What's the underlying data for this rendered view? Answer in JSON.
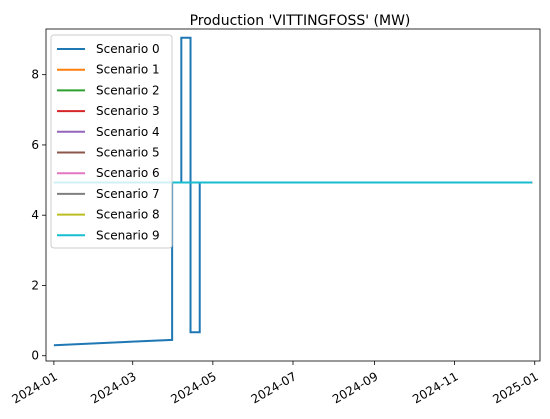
{
  "chart_data": {
    "type": "line",
    "title": "Production 'VITTINGFOSS' (MW)",
    "xlabel": "",
    "ylabel": "",
    "x_range": [
      "2023-12-26",
      "2025-01-05"
    ],
    "ylim": [
      -0.15,
      9.3
    ],
    "x_ticks": [
      "2024-01",
      "2024-03",
      "2024-05",
      "2024-07",
      "2024-09",
      "2024-11",
      "2025-01"
    ],
    "y_ticks": [
      0,
      2,
      4,
      6,
      8
    ],
    "legend_position": "top-left",
    "grid": false,
    "series": [
      {
        "name": "Scenario 0",
        "color": "#1f77b4",
        "step": true,
        "points": [
          [
            "2024-01-01",
            0.3
          ],
          [
            "2024-03-31",
            0.45
          ],
          [
            "2024-03-31",
            4.93
          ],
          [
            "2024-04-07",
            4.93
          ],
          [
            "2024-04-07",
            9.05
          ],
          [
            "2024-04-14",
            9.05
          ],
          [
            "2024-04-14",
            0.67
          ],
          [
            "2024-04-21",
            0.67
          ],
          [
            "2024-04-21",
            4.93
          ],
          [
            "2024-12-30",
            4.93
          ]
        ]
      },
      {
        "name": "Scenario 1",
        "color": "#ff7f0e",
        "points": [
          [
            "2024-01-01",
            4.93
          ],
          [
            "2024-12-30",
            4.93
          ]
        ]
      },
      {
        "name": "Scenario 2",
        "color": "#2ca02c",
        "points": [
          [
            "2024-01-01",
            4.93
          ],
          [
            "2024-12-30",
            4.93
          ]
        ]
      },
      {
        "name": "Scenario 3",
        "color": "#d62728",
        "points": [
          [
            "2024-01-01",
            4.93
          ],
          [
            "2024-12-30",
            4.93
          ]
        ]
      },
      {
        "name": "Scenario 4",
        "color": "#9467bd",
        "points": [
          [
            "2024-01-01",
            4.93
          ],
          [
            "2024-12-30",
            4.93
          ]
        ]
      },
      {
        "name": "Scenario 5",
        "color": "#8c564b",
        "points": [
          [
            "2024-01-01",
            4.93
          ],
          [
            "2024-12-30",
            4.93
          ]
        ]
      },
      {
        "name": "Scenario 6",
        "color": "#e377c2",
        "points": [
          [
            "2024-01-01",
            4.93
          ],
          [
            "2024-12-30",
            4.93
          ]
        ]
      },
      {
        "name": "Scenario 7",
        "color": "#7f7f7f",
        "points": [
          [
            "2024-01-01",
            4.93
          ],
          [
            "2024-12-30",
            4.93
          ]
        ]
      },
      {
        "name": "Scenario 8",
        "color": "#bcbd22",
        "points": [
          [
            "2024-01-01",
            4.93
          ],
          [
            "2024-12-30",
            4.93
          ]
        ]
      },
      {
        "name": "Scenario 9",
        "color": "#17becf",
        "points": [
          [
            "2024-01-01",
            4.93
          ],
          [
            "2024-12-30",
            4.93
          ]
        ]
      }
    ]
  }
}
